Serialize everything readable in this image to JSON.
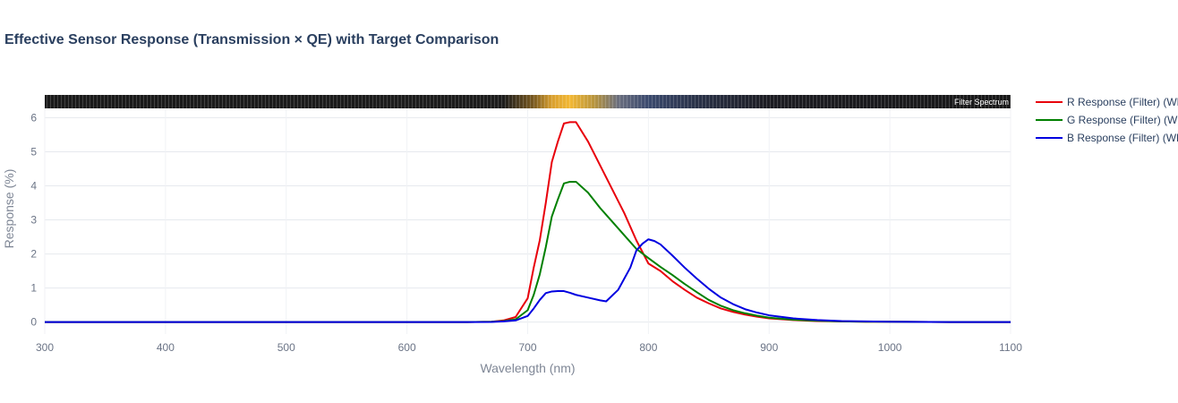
{
  "chart_data": {
    "type": "line",
    "title": "Effective Sensor Response (Transmission × QE) with Target Comparison",
    "xlabel": "Wavelength (nm)",
    "ylabel": "Response (%)",
    "xlim": [
      300,
      1100
    ],
    "ylim": [
      -0.35,
      6.3
    ],
    "x_ticks": [
      300,
      400,
      500,
      600,
      700,
      800,
      900,
      1000,
      1100
    ],
    "y_ticks": [
      0,
      1,
      2,
      3,
      4,
      5,
      6
    ],
    "grid": true,
    "legend_position": "right",
    "spectrum_strip": {
      "label": "Filter Spectrum",
      "stops": [
        {
          "wavelength": 300,
          "color": "#1a1a1a"
        },
        {
          "wavelength": 680,
          "color": "#1c1c1c"
        },
        {
          "wavelength": 705,
          "color": "#7a5a20"
        },
        {
          "wavelength": 720,
          "color": "#d9a030"
        },
        {
          "wavelength": 735,
          "color": "#f3b834"
        },
        {
          "wavelength": 755,
          "color": "#b8953d"
        },
        {
          "wavelength": 775,
          "color": "#6a6e7e"
        },
        {
          "wavelength": 800,
          "color": "#3b4a6e"
        },
        {
          "wavelength": 840,
          "color": "#2a3248"
        },
        {
          "wavelength": 900,
          "color": "#1c1c22"
        },
        {
          "wavelength": 1100,
          "color": "#181818"
        }
      ]
    },
    "series": [
      {
        "name": "R Response (Filter) (WB)",
        "color": "#e8000b",
        "x": [
          300,
          650,
          670,
          680,
          690,
          700,
          705,
          710,
          715,
          720,
          725,
          730,
          735,
          740,
          750,
          760,
          770,
          780,
          790,
          800,
          810,
          820,
          830,
          840,
          850,
          860,
          870,
          880,
          890,
          900,
          920,
          940,
          960,
          980,
          1000,
          1050,
          1100
        ],
        "values": [
          0,
          0,
          0.01,
          0.05,
          0.15,
          0.7,
          1.6,
          2.4,
          3.5,
          4.7,
          5.3,
          5.83,
          5.87,
          5.87,
          5.3,
          4.6,
          3.9,
          3.2,
          2.4,
          1.72,
          1.5,
          1.2,
          0.95,
          0.72,
          0.55,
          0.4,
          0.3,
          0.22,
          0.16,
          0.11,
          0.06,
          0.03,
          0.02,
          0.01,
          0.01,
          0,
          0
        ]
      },
      {
        "name": "G Response (Filter) (WB)",
        "color": "#008000",
        "x": [
          300,
          650,
          670,
          680,
          690,
          700,
          705,
          710,
          715,
          720,
          725,
          730,
          735,
          740,
          750,
          760,
          770,
          780,
          790,
          800,
          810,
          820,
          830,
          840,
          850,
          860,
          870,
          880,
          890,
          900,
          920,
          940,
          960,
          980,
          1000,
          1050,
          1100
        ],
        "values": [
          0,
          0,
          0.01,
          0.03,
          0.08,
          0.35,
          0.8,
          1.4,
          2.2,
          3.1,
          3.6,
          4.07,
          4.12,
          4.12,
          3.8,
          3.35,
          2.95,
          2.55,
          2.15,
          1.88,
          1.62,
          1.38,
          1.12,
          0.88,
          0.65,
          0.48,
          0.35,
          0.26,
          0.19,
          0.13,
          0.07,
          0.04,
          0.02,
          0.01,
          0.01,
          0,
          0
        ]
      },
      {
        "name": "B Response (Filter) (WB)",
        "color": "#0000e0",
        "x": [
          300,
          650,
          670,
          680,
          690,
          700,
          705,
          710,
          715,
          720,
          725,
          730,
          735,
          740,
          750,
          760,
          765,
          775,
          785,
          790,
          795,
          800,
          805,
          810,
          820,
          830,
          840,
          850,
          860,
          870,
          880,
          890,
          900,
          920,
          940,
          960,
          980,
          1000,
          1050,
          1100
        ],
        "values": [
          0,
          0,
          0.005,
          0.02,
          0.05,
          0.18,
          0.4,
          0.65,
          0.85,
          0.9,
          0.91,
          0.91,
          0.86,
          0.8,
          0.72,
          0.64,
          0.61,
          0.95,
          1.6,
          2.1,
          2.3,
          2.43,
          2.38,
          2.28,
          1.95,
          1.6,
          1.28,
          0.98,
          0.72,
          0.53,
          0.38,
          0.28,
          0.2,
          0.11,
          0.06,
          0.03,
          0.02,
          0.01,
          0,
          0
        ]
      }
    ]
  }
}
